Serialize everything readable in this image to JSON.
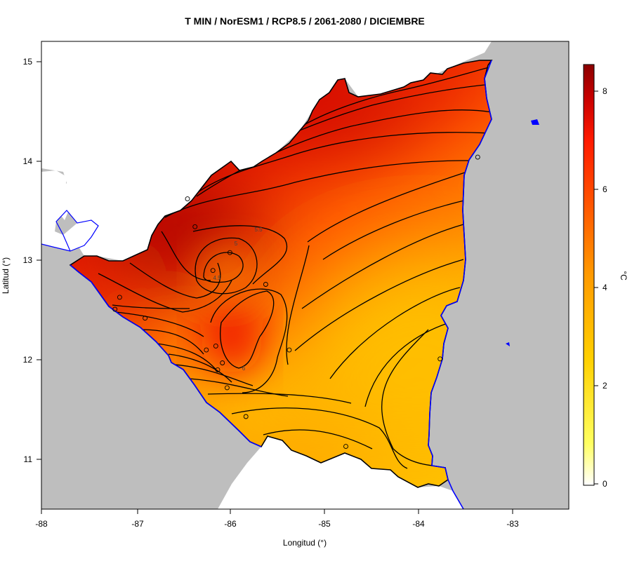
{
  "title": "T MIN / NorESM1 / RCP8.5 / 2061-2080 / DICIEMBRE",
  "x_axis": {
    "label": "Longitud (°)",
    "ticks": [
      "-88",
      "-87",
      "-86",
      "-85",
      "-84",
      "-83"
    ]
  },
  "y_axis": {
    "label": "Latitud (°)",
    "ticks": [
      "15",
      "14",
      "13",
      "12",
      "11"
    ]
  },
  "colorbar": {
    "unit": "°C",
    "ticks": [
      "8",
      "6",
      "4",
      "2",
      "0"
    ],
    "range": [
      0,
      8.6
    ]
  },
  "contour_labels": [
    "5.5",
    "5",
    "4.5",
    "6"
  ],
  "colors": {
    "ocean": "#bebebe",
    "coast": "#0000ff",
    "border": "#000000"
  },
  "chart_data": {
    "type": "heatmap",
    "title": "T MIN / NorESM1 / RCP8.5 / 2061-2080 / DICIEMBRE",
    "xlabel": "Longitud (°)",
    "ylabel": "Latitud (°)",
    "xlim": [
      -88,
      -82.5
    ],
    "ylim": [
      10.5,
      15.2
    ],
    "colorbar_label": "°C",
    "colorbar_range": [
      0,
      8.6
    ],
    "colorbar_ticks": [
      0,
      2,
      4,
      6,
      8
    ],
    "contour_labels": [
      4.5,
      5,
      5.5,
      6
    ],
    "stations": [
      {
        "lon": -86.45,
        "lat": 13.62
      },
      {
        "lon": -86.37,
        "lat": 13.34
      },
      {
        "lon": -86.0,
        "lat": 13.08
      },
      {
        "lon": -86.18,
        "lat": 12.9
      },
      {
        "lon": -85.62,
        "lat": 12.76
      },
      {
        "lon": -87.17,
        "lat": 12.63
      },
      {
        "lon": -86.9,
        "lat": 12.42
      },
      {
        "lon": -87.22,
        "lat": 12.51
      },
      {
        "lon": -86.25,
        "lat": 12.1
      },
      {
        "lon": -86.15,
        "lat": 12.14
      },
      {
        "lon": -86.08,
        "lat": 11.97
      },
      {
        "lon": -86.13,
        "lat": 11.9
      },
      {
        "lon": -86.03,
        "lat": 11.72
      },
      {
        "lon": -85.83,
        "lat": 11.43
      },
      {
        "lon": -85.37,
        "lat": 12.1
      },
      {
        "lon": -84.77,
        "lat": 11.13
      },
      {
        "lon": -83.77,
        "lat": 12.01
      },
      {
        "lon": -83.37,
        "lat": 14.04
      }
    ]
  }
}
